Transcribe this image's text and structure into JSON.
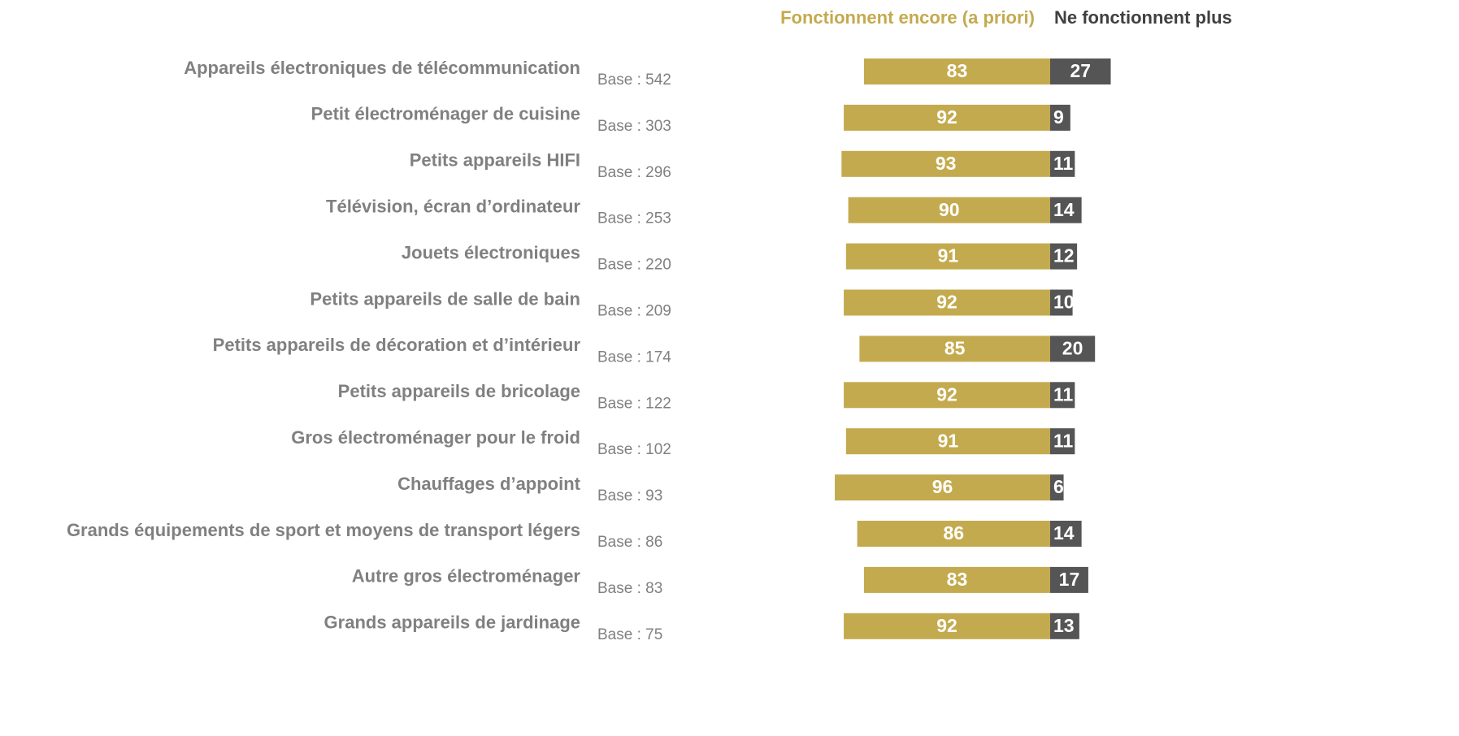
{
  "chart_data": {
    "type": "diverging_bar",
    "categories": [
      "Appareils électroniques de télécommunication",
      "Petit électroménager de cuisine",
      "Petits appareils HIFI",
      "Télévision, écran d’ordinateur",
      "Jouets électroniques",
      "Petits appareils de salle de bain",
      "Petits appareils de décoration et d’intérieur",
      "Petits appareils de bricolage",
      "Gros électroménager pour le froid",
      "Chauffages d’appoint",
      "Grands équipements de sport et moyens de transport légers",
      "Autre gros électroménager",
      "Grands appareils de jardinage"
    ],
    "bases": [
      "Base : 542",
      "Base : 303",
      "Base : 296",
      "Base : 253",
      "Base : 220",
      "Base : 209",
      "Base : 174",
      "Base : 122",
      "Base : 102",
      "Base : 93",
      "Base : 86",
      "Base : 83",
      "Base : 75"
    ],
    "series": [
      {
        "name": "Fonctionnent encore (a priori)",
        "color": "#c4aa4e",
        "values": [
          83,
          92,
          93,
          90,
          91,
          92,
          85,
          92,
          91,
          96,
          86,
          83,
          92
        ]
      },
      {
        "name": "Ne fonctionnent plus",
        "color": "#555555",
        "values": [
          27,
          9,
          11,
          14,
          12,
          10,
          20,
          11,
          11,
          6,
          14,
          17,
          13
        ]
      }
    ]
  }
}
